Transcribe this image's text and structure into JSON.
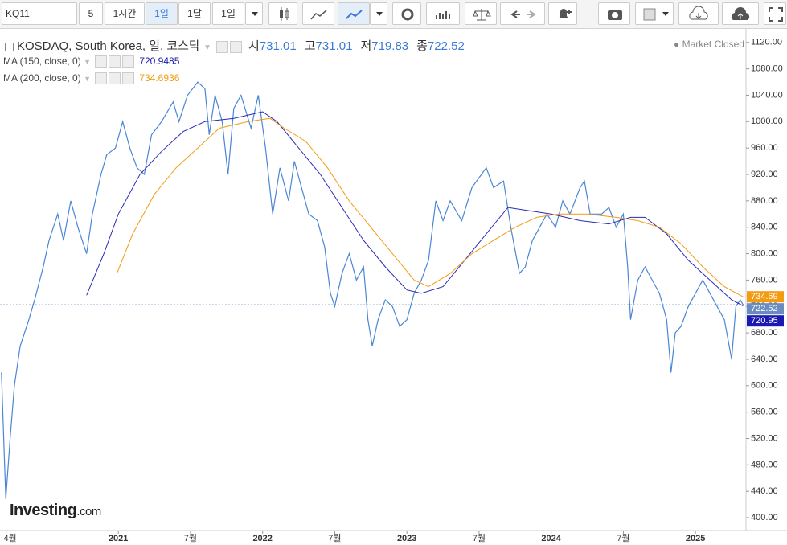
{
  "toolbar": {
    "symbol": "KQ11",
    "buttons": [
      "5",
      "1시간",
      "1일",
      "1달",
      "1일"
    ],
    "active": 2
  },
  "header": {
    "title": "KOSDAQ, South Korea, 일, 코스닥",
    "ohlc": [
      {
        "label": "시",
        "value": "731.01"
      },
      {
        "label": "고",
        "value": "731.01"
      },
      {
        "label": "저",
        "value": "719.83"
      },
      {
        "label": "종",
        "value": "722.52"
      }
    ],
    "status": "Market Closed",
    "studies": [
      {
        "label": "MA (150, close, 0)",
        "value": "720.9485",
        "color": "#1a1ab0"
      },
      {
        "label": "MA (200, close, 0)",
        "value": "734.6936",
        "color": "#f39c12"
      }
    ]
  },
  "logo": {
    "brand": "Investing",
    "suffix": ".com"
  },
  "chart_data": {
    "type": "line",
    "xlim": [
      2020.18,
      2025.35
    ],
    "ylim": [
      383,
      1138
    ],
    "xticks": [
      {
        "value": 2020.25,
        "label": "4월"
      },
      2021,
      {
        "value": 2021.5,
        "label": "7월"
      },
      2022,
      {
        "value": 2022.5,
        "label": "7월"
      },
      2023,
      {
        "value": 2023.5,
        "label": "7월"
      },
      2024,
      {
        "value": 2024.5,
        "label": "7월"
      },
      2025
    ],
    "yticks": [
      {
        "value": 400,
        "label": "400.00"
      },
      {
        "value": 440,
        "label": "440.00"
      },
      {
        "value": 480,
        "label": "480.00"
      },
      {
        "value": 520,
        "label": "520.00"
      },
      {
        "value": 560,
        "label": "560.00"
      },
      {
        "value": 600,
        "label": "600.00"
      },
      {
        "value": 640,
        "label": "640.00"
      },
      {
        "value": 680,
        "label": "680.00"
      },
      {
        "value": 720,
        "label": "720.00"
      },
      {
        "value": 760,
        "label": "760.00"
      },
      {
        "value": 800,
        "label": "800.00"
      },
      {
        "value": 840,
        "label": "840.00"
      },
      {
        "value": 880,
        "label": "880.00"
      },
      {
        "value": 920,
        "label": "920.00"
      },
      {
        "value": 960,
        "label": "960.00"
      },
      {
        "value": 1000,
        "label": "1000.00"
      },
      {
        "value": 1040,
        "label": "1040.00"
      },
      {
        "value": 1080,
        "label": "1080.00"
      },
      {
        "value": 1120,
        "label": "1120.00"
      }
    ],
    "grid": false,
    "series": [
      {
        "name": "KOSDAQ",
        "color": "#4a86d6",
        "x": [
          2020.19,
          2020.22,
          2020.25,
          2020.28,
          2020.32,
          2020.38,
          2020.42,
          2020.48,
          2020.52,
          2020.58,
          2020.62,
          2020.67,
          2020.72,
          2020.78,
          2020.82,
          2020.88,
          2020.92,
          2020.98,
          2021.03,
          2021.08,
          2021.13,
          2021.18,
          2021.23,
          2021.3,
          2021.38,
          2021.42,
          2021.48,
          2021.55,
          2021.6,
          2021.63,
          2021.67,
          2021.72,
          2021.76,
          2021.8,
          2021.85,
          2021.92,
          2021.97,
          2022.02,
          2022.07,
          2022.12,
          2022.18,
          2022.22,
          2022.27,
          2022.32,
          2022.38,
          2022.43,
          2022.47,
          2022.5,
          2022.55,
          2022.6,
          2022.65,
          2022.7,
          2022.73,
          2022.76,
          2022.8,
          2022.85,
          2022.9,
          2022.95,
          2023.0,
          2023.05,
          2023.1,
          2023.15,
          2023.2,
          2023.25,
          2023.3,
          2023.38,
          2023.45,
          2023.55,
          2023.6,
          2023.67,
          2023.72,
          2023.78,
          2023.82,
          2023.87,
          2023.92,
          2023.97,
          2024.03,
          2024.08,
          2024.13,
          2024.2,
          2024.23,
          2024.27,
          2024.35,
          2024.4,
          2024.45,
          2024.5,
          2024.53,
          2024.55,
          2024.6,
          2024.65,
          2024.7,
          2024.75,
          2024.8,
          2024.83,
          2024.86,
          2024.9,
          2024.95,
          2025.0,
          2025.05,
          2025.1,
          2025.15,
          2025.2,
          2025.25,
          2025.28,
          2025.31,
          2025.33
        ],
        "values": [
          620,
          428,
          520,
          600,
          660,
          700,
          730,
          780,
          820,
          860,
          820,
          880,
          840,
          800,
          860,
          920,
          950,
          960,
          1000,
          960,
          930,
          920,
          980,
          1000,
          1030,
          1000,
          1040,
          1060,
          1050,
          980,
          1040,
          1000,
          920,
          1020,
          1040,
          990,
          1040,
          960,
          860,
          930,
          880,
          940,
          900,
          860,
          850,
          810,
          740,
          720,
          770,
          800,
          760,
          780,
          700,
          660,
          700,
          730,
          720,
          690,
          700,
          740,
          760,
          790,
          880,
          850,
          880,
          850,
          900,
          930,
          900,
          910,
          840,
          770,
          780,
          820,
          840,
          860,
          840,
          880,
          860,
          900,
          910,
          860,
          860,
          870,
          840,
          860,
          780,
          700,
          760,
          780,
          760,
          740,
          700,
          620,
          680,
          690,
          720,
          740,
          760,
          740,
          720,
          700,
          640,
          720,
          730,
          722.52
        ]
      },
      {
        "name": "MA (150)",
        "color": "#2a2ab8",
        "x": [
          2020.78,
          2020.9,
          2021.0,
          2021.15,
          2021.3,
          2021.45,
          2021.6,
          2021.8,
          2022.0,
          2022.1,
          2022.25,
          2022.4,
          2022.55,
          2022.7,
          2022.85,
          2023.0,
          2023.1,
          2023.25,
          2023.4,
          2023.55,
          2023.7,
          2023.85,
          2024.0,
          2024.2,
          2024.4,
          2024.55,
          2024.65,
          2024.8,
          2024.95,
          2025.1,
          2025.25,
          2025.33
        ],
        "values": [
          737,
          800,
          860,
          920,
          955,
          985,
          1000,
          1005,
          1015,
          1000,
          960,
          920,
          870,
          820,
          780,
          745,
          740,
          750,
          790,
          830,
          870,
          865,
          860,
          850,
          845,
          855,
          855,
          830,
          790,
          760,
          730,
          720.9485
        ]
      },
      {
        "name": "MA (200)",
        "color": "#f39c12",
        "x": [
          2020.99,
          2021.1,
          2021.25,
          2021.4,
          2021.55,
          2021.7,
          2021.9,
          2022.05,
          2022.15,
          2022.3,
          2022.45,
          2022.6,
          2022.75,
          2022.9,
          2023.05,
          2023.15,
          2023.3,
          2023.45,
          2023.6,
          2023.75,
          2023.9,
          2024.05,
          2024.25,
          2024.45,
          2024.6,
          2024.75,
          2024.9,
          2025.05,
          2025.2,
          2025.33
        ],
        "values": [
          770,
          830,
          890,
          930,
          960,
          990,
          1000,
          1005,
          990,
          970,
          930,
          880,
          840,
          800,
          760,
          750,
          770,
          800,
          820,
          840,
          855,
          860,
          860,
          855,
          850,
          840,
          815,
          780,
          750,
          734.6936
        ]
      }
    ],
    "price_labels": [
      {
        "value": 734.6936,
        "label": "734.69",
        "color": "#f39c12"
      },
      {
        "value": 722.52,
        "label": "722.52",
        "color": "#6b8cc0"
      },
      {
        "value": 720.9485,
        "label": "720.95",
        "color": "#1a1ab0"
      }
    ],
    "last_price_line": 722.52
  }
}
